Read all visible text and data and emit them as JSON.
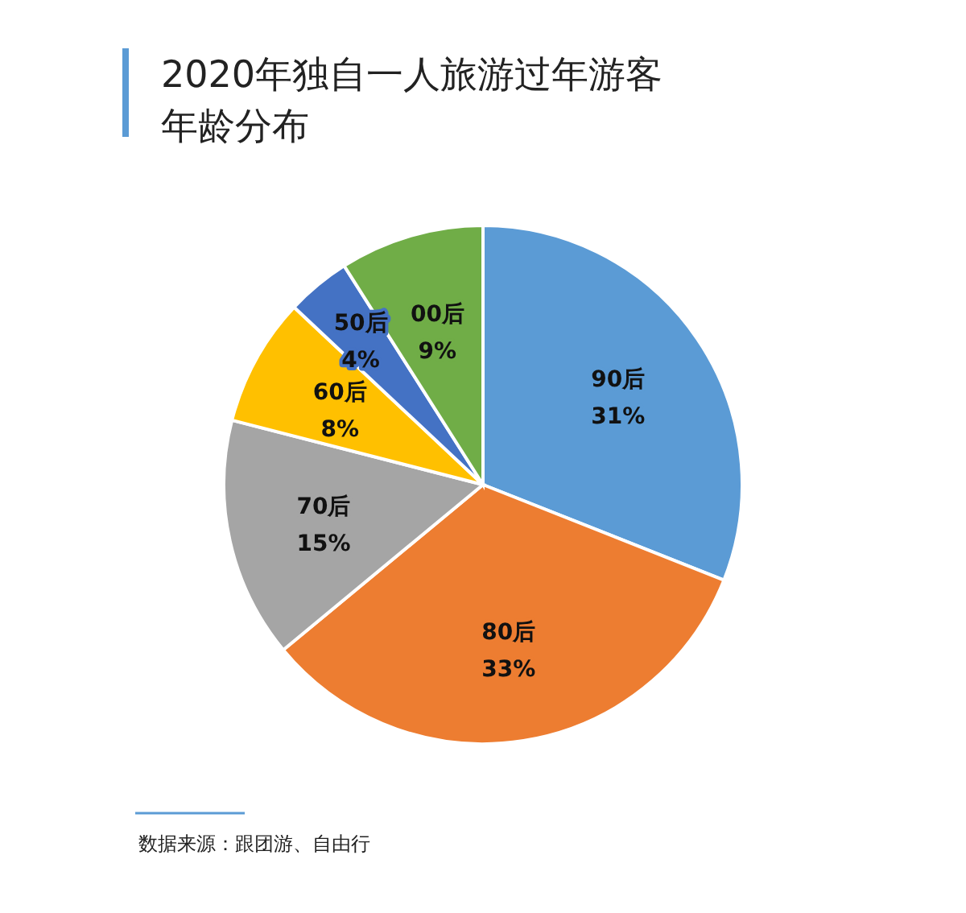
{
  "chart_data": {
    "type": "pie",
    "title": "2020年独自一人旅游过年游客年龄分布",
    "categories": [
      "90后",
      "80后",
      "70后",
      "60后",
      "50后",
      "00后"
    ],
    "values": [
      31,
      33,
      15,
      8,
      4,
      9
    ],
    "colors": [
      "#5b9bd5",
      "#ed7d31",
      "#a5a5a5",
      "#ffc000",
      "#4472c4",
      "#70ad47"
    ],
    "value_labels": [
      "31%",
      "33%",
      "15%",
      "8%",
      "4%",
      "9%"
    ],
    "annotations": [
      "数据来源：跟团游、自由行"
    ]
  }
}
